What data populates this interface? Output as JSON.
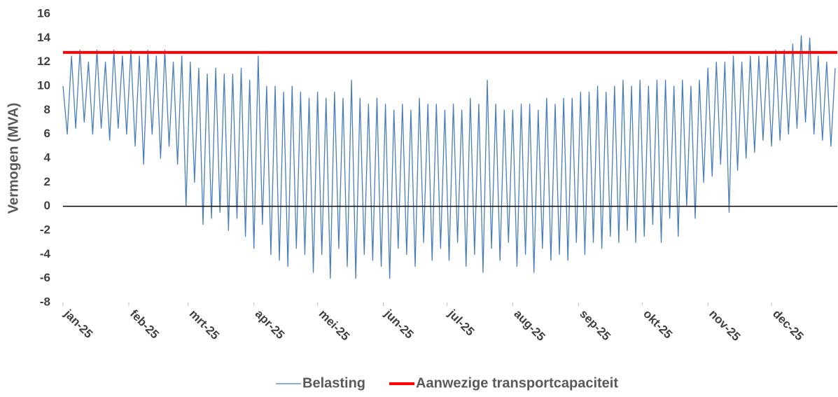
{
  "chart_data": {
    "type": "line",
    "y_label": "Vermogen (MVA)",
    "xlim": [
      0,
      365
    ],
    "xticks": [
      {
        "value": 0,
        "label": "jan-25"
      },
      {
        "value": 31,
        "label": "feb-25"
      },
      {
        "value": 59,
        "label": "mrt-25"
      },
      {
        "value": 90,
        "label": "apr-25"
      },
      {
        "value": 120,
        "label": "mei-25"
      },
      {
        "value": 151,
        "label": "jun-25"
      },
      {
        "value": 181,
        "label": "jul-25"
      },
      {
        "value": 212,
        "label": "aug-25"
      },
      {
        "value": 243,
        "label": "sep-25"
      },
      {
        "value": 273,
        "label": "okt-25"
      },
      {
        "value": 304,
        "label": "nov-25"
      },
      {
        "value": 334,
        "label": "dec-25"
      }
    ],
    "ylim": [
      -8,
      16
    ],
    "yticks": [
      -8,
      -6,
      -4,
      -2,
      0,
      2,
      4,
      6,
      8,
      10,
      12,
      14,
      16
    ],
    "zero_line": true,
    "legend": "bottom",
    "series": [
      {
        "name": "Belasting",
        "color": "#4a7ebb",
        "width": 1.3,
        "x": [
          0,
          2,
          4,
          6,
          8,
          10,
          12,
          14,
          16,
          18,
          20,
          22,
          24,
          26,
          28,
          30,
          32,
          34,
          36,
          38,
          40,
          42,
          44,
          46,
          48,
          50,
          52,
          54,
          56,
          58,
          60,
          62,
          64,
          66,
          68,
          70,
          72,
          74,
          76,
          78,
          80,
          82,
          84,
          86,
          88,
          90,
          92,
          94,
          96,
          98,
          100,
          102,
          104,
          106,
          108,
          110,
          112,
          114,
          116,
          118,
          120,
          122,
          124,
          126,
          128,
          130,
          132,
          134,
          136,
          138,
          140,
          142,
          144,
          146,
          148,
          150,
          152,
          154,
          156,
          158,
          160,
          162,
          164,
          166,
          168,
          170,
          172,
          174,
          176,
          178,
          180,
          182,
          184,
          186,
          188,
          190,
          192,
          194,
          196,
          198,
          200,
          202,
          204,
          206,
          208,
          210,
          212,
          214,
          216,
          218,
          220,
          222,
          224,
          226,
          228,
          230,
          232,
          234,
          236,
          238,
          240,
          242,
          244,
          246,
          248,
          250,
          252,
          254,
          256,
          258,
          260,
          262,
          264,
          266,
          268,
          270,
          272,
          274,
          276,
          278,
          280,
          282,
          284,
          286,
          288,
          290,
          292,
          294,
          296,
          298,
          300,
          302,
          304,
          306,
          308,
          310,
          312,
          314,
          316,
          318,
          320,
          322,
          324,
          326,
          328,
          330,
          332,
          334,
          336,
          338,
          340,
          342,
          344,
          346,
          348,
          350,
          352,
          354,
          356,
          358,
          360,
          362,
          364
        ],
        "values": [
          10,
          6,
          12.5,
          6.5,
          13,
          7,
          12,
          6,
          13,
          6.5,
          12,
          5.5,
          13,
          6.5,
          12.5,
          6,
          13,
          5,
          12.5,
          3.5,
          13,
          6,
          12.5,
          4,
          13,
          5,
          12,
          3.5,
          12.5,
          0,
          12,
          2,
          11.5,
          -1.5,
          11,
          -1,
          11.5,
          -0.5,
          11,
          -2,
          11,
          -1,
          11.5,
          -2.5,
          10.5,
          -3.5,
          12.5,
          -1.5,
          10,
          -4,
          10,
          -4.5,
          9.5,
          -5,
          10,
          -3.5,
          9.5,
          -4,
          9,
          -5.5,
          9.5,
          -4,
          9,
          -6,
          9.5,
          -3.5,
          9,
          -5,
          10.5,
          -6,
          9,
          -4,
          8.5,
          -4.5,
          9,
          -5,
          8.5,
          -6,
          8,
          -3.5,
          8.5,
          -4,
          8,
          -5,
          9,
          -3,
          8.5,
          -4.5,
          8.5,
          -3.5,
          8,
          -4.5,
          8.5,
          -3,
          8,
          -5,
          9,
          -4,
          8.5,
          -5.5,
          10.5,
          -3.5,
          8.5,
          -4.5,
          8,
          -3,
          8,
          -5,
          8.5,
          -4,
          8.5,
          -5.5,
          8,
          -3.5,
          9,
          -4.5,
          8.5,
          -4,
          9,
          -4.5,
          9,
          -3,
          9.5,
          -4,
          9.5,
          -3,
          10,
          -3.5,
          9.5,
          -2.5,
          10,
          -3,
          10.5,
          -2,
          10,
          -3,
          10.5,
          -2.5,
          10,
          -1.5,
          10.5,
          -3,
          10.5,
          -1,
          10,
          -2.5,
          10.5,
          0,
          10,
          -1,
          10.5,
          2,
          11.5,
          2.5,
          12,
          3.5,
          12,
          -0.5,
          12.5,
          3,
          12,
          4,
          12.5,
          4.5,
          12.5,
          5.5,
          12.5,
          5,
          13,
          5.5,
          13,
          6,
          13.5,
          6.5,
          14.2,
          7,
          14,
          6,
          12.5,
          5.5,
          12,
          5,
          11.5
        ]
      },
      {
        "name": "Aanwezige transportcapaciteit",
        "color": "#ff0000",
        "width": 4,
        "x": [
          0,
          365
        ],
        "values": [
          12.8,
          12.8
        ]
      }
    ]
  }
}
